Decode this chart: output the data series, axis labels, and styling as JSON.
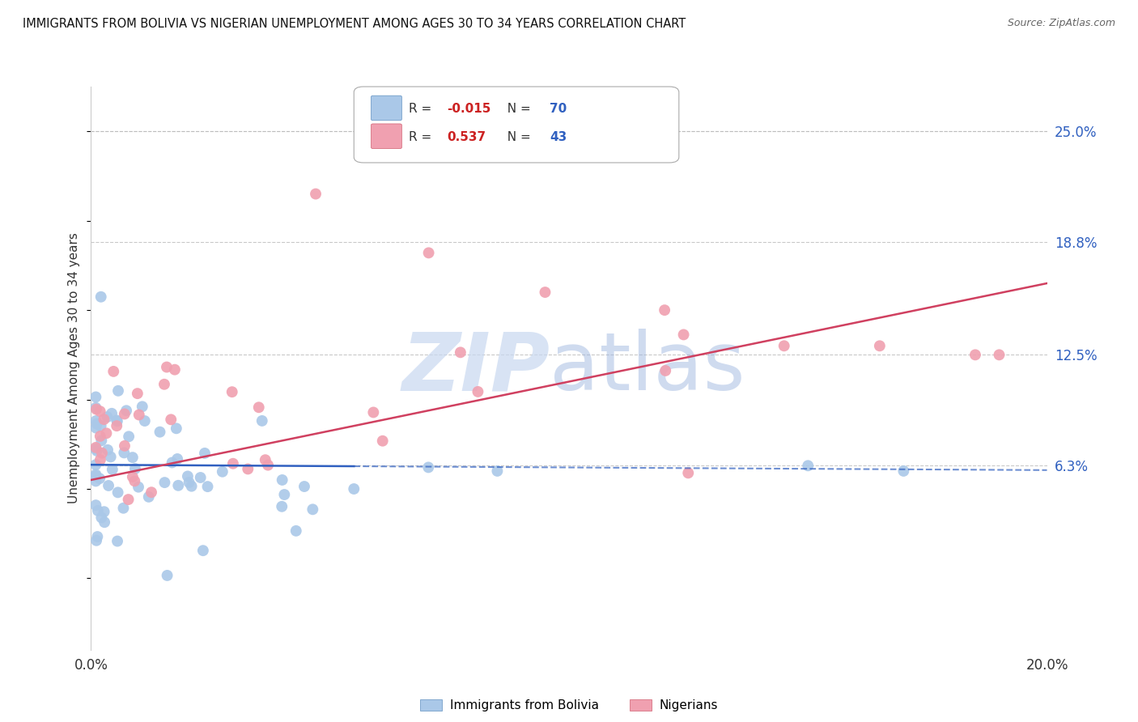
{
  "title": "IMMIGRANTS FROM BOLIVIA VS NIGERIAN UNEMPLOYMENT AMONG AGES 30 TO 34 YEARS CORRELATION CHART",
  "source": "Source: ZipAtlas.com",
  "ylabel": "Unemployment Among Ages 30 to 34 years",
  "ytick_labels": [
    "25.0%",
    "18.8%",
    "12.5%",
    "6.3%"
  ],
  "ytick_values": [
    0.25,
    0.188,
    0.125,
    0.063
  ],
  "xlim": [
    0.0,
    0.2
  ],
  "ylim": [
    -0.04,
    0.275
  ],
  "background_color": "#ffffff",
  "grid_color": "#bbbbbb",
  "bolivia_color": "#aac8e8",
  "nigeria_color": "#f0a0b0",
  "bolivia_line_color": "#3060c0",
  "nigeria_line_color": "#d04060",
  "bolivia_R": "-0.015",
  "bolivia_N": "70",
  "nigeria_R": "0.537",
  "nigeria_N": "43",
  "R_label_color": "#cc2222",
  "N_label_color": "#3060c0",
  "watermark_ZIP_color": "#c8d8f0",
  "watermark_atlas_color": "#a0b8e0"
}
